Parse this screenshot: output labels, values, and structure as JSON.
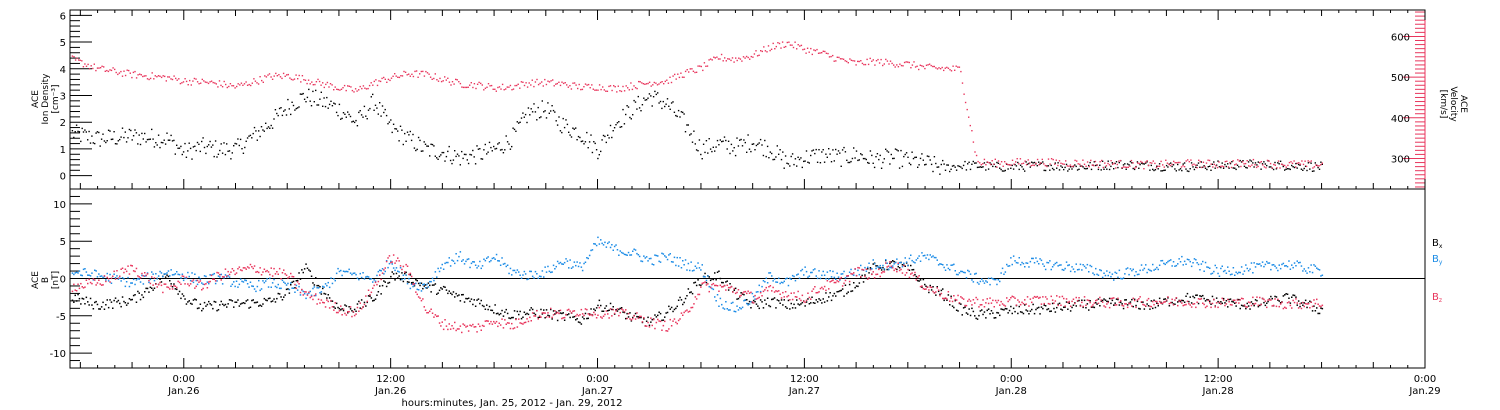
{
  "chart_data": [
    {
      "type": "scatter",
      "panel": "top",
      "title": "",
      "left_axis": {
        "label_lines": [
          "ACE",
          "Ion Density",
          "[cm⁻³]"
        ],
        "ylim": [
          -0.5,
          6.2
        ],
        "ticks": [
          "0",
          "1",
          "2",
          "3",
          "4",
          "5",
          "6"
        ],
        "color": "#000000"
      },
      "right_axis": {
        "label_lines": [
          "ACE",
          "Velocity",
          "[km/s]"
        ],
        "ylim": [
          225,
          665
        ],
        "ticks": [
          "300",
          "400",
          "500",
          "600"
        ],
        "color": "#e8365d"
      },
      "series": [
        {
          "label": "Ion Density",
          "axis": "left",
          "color": "#000000",
          "x": [
            -6.5,
            -5,
            -3,
            -1,
            0,
            1,
            2,
            3,
            4,
            5,
            6,
            7,
            8,
            9,
            10,
            11,
            12,
            13,
            14,
            15,
            16,
            17,
            18,
            19,
            20,
            21,
            22,
            23,
            24,
            25,
            26,
            27,
            28,
            29,
            30,
            31,
            32,
            33,
            34,
            35,
            36,
            37,
            38,
            39,
            40,
            41,
            42,
            43,
            44,
            45,
            46,
            47,
            48,
            50,
            52,
            54,
            56,
            58,
            60,
            62,
            64,
            66
          ],
          "y": [
            1.6,
            1.4,
            1.5,
            1.4,
            0.9,
            1.1,
            1.0,
            1.0,
            1.5,
            2.0,
            2.6,
            3.0,
            2.8,
            2.5,
            2.0,
            2.8,
            1.8,
            1.4,
            1.0,
            0.9,
            0.7,
            0.8,
            1.0,
            1.4,
            2.4,
            2.5,
            1.9,
            1.6,
            1.0,
            2.0,
            2.5,
            3.0,
            2.7,
            2.0,
            1.0,
            1.2,
            1.1,
            1.3,
            1.0,
            0.5,
            0.7,
            0.8,
            0.7,
            0.8,
            0.6,
            0.7,
            0.6,
            0.5,
            0.3,
            0.4,
            0.4,
            0.35,
            0.35,
            0.4,
            0.35,
            0.45,
            0.4,
            0.35,
            0.4,
            0.45,
            0.4,
            0.35
          ]
        },
        {
          "label": "Velocity",
          "axis": "right",
          "color": "#e8365d",
          "x": [
            -6.5,
            -5,
            -3,
            -1,
            0,
            1,
            2,
            3,
            4,
            5,
            6,
            7,
            8,
            9,
            10,
            11,
            12,
            13,
            14,
            15,
            16,
            17,
            18,
            19,
            20,
            21,
            22,
            23,
            24,
            25,
            26,
            27,
            28,
            29,
            30,
            31,
            32,
            33,
            34,
            35,
            36,
            37,
            38,
            39,
            40,
            41,
            42,
            43,
            44,
            45,
            46,
            47,
            48,
            50,
            52,
            54,
            56,
            58,
            60,
            62,
            64,
            66
          ],
          "y": [
            545,
            522,
            508,
            500,
            492,
            490,
            485,
            478,
            490,
            503,
            505,
            496,
            485,
            475,
            468,
            487,
            500,
            510,
            508,
            496,
            485,
            482,
            475,
            478,
            487,
            488,
            484,
            477,
            478,
            473,
            480,
            488,
            492,
            510,
            524,
            550,
            545,
            555,
            575,
            585,
            570,
            560,
            545,
            535,
            540,
            536,
            533,
            525,
            523,
            520,
            292,
            290,
            292,
            292,
            290,
            288,
            286,
            289,
            288,
            290,
            287,
            286
          ]
        }
      ]
    },
    {
      "type": "scatter",
      "panel": "bottom",
      "title": "",
      "left_axis": {
        "label_lines": [
          "ACE",
          "B",
          "[nT]"
        ],
        "ylim": [
          -12,
          12
        ],
        "ticks": [
          "10",
          "5",
          "0",
          "-5",
          "-10"
        ],
        "color": "#000000"
      },
      "zero_line": true,
      "legend": {
        "position": "right",
        "entries": [
          "Bx",
          "By",
          "Bz"
        ]
      },
      "series": [
        {
          "name": "Bx",
          "color": "#000000",
          "x": [
            -6.5,
            -5,
            -3,
            -1,
            0,
            1,
            2,
            3,
            4,
            5,
            6,
            7,
            8,
            9,
            10,
            11,
            12,
            13,
            14,
            15,
            16,
            17,
            18,
            19,
            20,
            21,
            22,
            23,
            24,
            25,
            26,
            27,
            28,
            29,
            30,
            31,
            32,
            33,
            34,
            35,
            36,
            37,
            38,
            39,
            40,
            41,
            42,
            43,
            44,
            45,
            46,
            47,
            48,
            50,
            52,
            54,
            56,
            58,
            60,
            62,
            64,
            66
          ],
          "y": [
            -2.5,
            -3.5,
            -2.8,
            0.5,
            -2.5,
            -3.8,
            -3.5,
            -3.3,
            -3.2,
            -3.0,
            -1.8,
            1.5,
            -1.5,
            -4.0,
            -3.8,
            -2.5,
            0.5,
            0.2,
            -1.0,
            -1.5,
            -2.5,
            -3.0,
            -4.0,
            -4.8,
            -4.5,
            -4.6,
            -5.0,
            -5.5,
            -3.5,
            -4.0,
            -5.2,
            -5.8,
            -4.5,
            -2.5,
            0.0,
            0.5,
            -2.0,
            -3.5,
            -3.0,
            -3.5,
            -3.3,
            -2.5,
            -2.0,
            -0.5,
            1.5,
            2.0,
            1.5,
            -1.0,
            -2.0,
            -4.0,
            -4.8,
            -4.6,
            -4.2,
            -4.0,
            -3.5,
            -3.2,
            -3.5,
            -2.5,
            -3.0,
            -3.5,
            -2.5,
            -4.2
          ]
        },
        {
          "name": "By",
          "color": "#1c8ce6",
          "x": [
            -6.5,
            -5,
            -3,
            -1,
            0,
            1,
            2,
            3,
            4,
            5,
            6,
            7,
            8,
            9,
            10,
            11,
            12,
            13,
            14,
            15,
            16,
            17,
            18,
            19,
            20,
            21,
            22,
            23,
            24,
            25,
            26,
            27,
            28,
            29,
            30,
            31,
            32,
            33,
            34,
            35,
            36,
            37,
            38,
            39,
            40,
            41,
            42,
            43,
            44,
            45,
            46,
            47,
            48,
            50,
            52,
            54,
            56,
            58,
            60,
            62,
            64,
            66
          ],
          "y": [
            1.0,
            0.5,
            -0.5,
            1.0,
            0.5,
            -0.2,
            0.2,
            -0.5,
            -1.0,
            -0.5,
            -1.0,
            -2.0,
            -1.5,
            1.0,
            0.5,
            0.0,
            2.5,
            -0.5,
            -1.0,
            2.0,
            3.0,
            1.5,
            3.0,
            1.0,
            0.5,
            1.0,
            2.5,
            1.5,
            5.0,
            4.0,
            3.5,
            2.5,
            3.0,
            2.0,
            1.5,
            -3.0,
            -4.0,
            -2.5,
            0.5,
            -0.5,
            1.0,
            0.5,
            0.5,
            1.0,
            2.0,
            2.0,
            2.5,
            3.0,
            2.0,
            1.0,
            0.0,
            -0.5,
            2.5,
            2.0,
            1.5,
            0.5,
            1.5,
            2.5,
            1.0,
            1.5,
            2.0,
            1.0
          ]
        },
        {
          "name": "Bz",
          "color": "#e8365d",
          "x": [
            -6.5,
            -5,
            -3,
            -1,
            0,
            1,
            2,
            3,
            4,
            5,
            6,
            7,
            8,
            9,
            10,
            11,
            12,
            13,
            14,
            15,
            16,
            17,
            18,
            19,
            20,
            21,
            22,
            23,
            24,
            25,
            26,
            27,
            28,
            29,
            30,
            31,
            32,
            33,
            34,
            35,
            36,
            37,
            38,
            39,
            40,
            41,
            42,
            43,
            44,
            45,
            46,
            47,
            48,
            50,
            52,
            54,
            56,
            58,
            60,
            62,
            64,
            66
          ],
          "y": [
            -1.0,
            -0.5,
            1.5,
            -1.5,
            0.0,
            -1.0,
            0.5,
            1.0,
            1.5,
            1.0,
            0.5,
            -2.0,
            -3.0,
            -4.0,
            -4.5,
            -1.0,
            3.0,
            1.0,
            -4.0,
            -6.0,
            -6.5,
            -6.5,
            -5.5,
            -6.3,
            -5.0,
            -4.5,
            -4.8,
            -4.2,
            -4.5,
            -4.5,
            -5.0,
            -5.8,
            -6.3,
            -5.0,
            -1.0,
            -1.0,
            -1.5,
            -2.5,
            -1.5,
            -2.0,
            -2.5,
            -1.0,
            -0.5,
            1.0,
            0.5,
            2.0,
            1.0,
            -1.0,
            -2.0,
            -3.0,
            -3.0,
            -3.2,
            -3.0,
            -2.8,
            -3.0,
            -3.2,
            -3.0,
            -3.0,
            -3.2,
            -3.0,
            -3.3,
            -3.2
          ]
        }
      ]
    }
  ],
  "time_axis": {
    "hours_range": [
      -6.6,
      72
    ],
    "ticks": [
      {
        "hours": 0,
        "time": "0:00",
        "date": "Jan.26"
      },
      {
        "hours": 12,
        "time": "12:00",
        "date": "Jan.26"
      },
      {
        "hours": 24,
        "time": "0:00",
        "date": "Jan.27"
      },
      {
        "hours": 36,
        "time": "12:00",
        "date": "Jan.27"
      },
      {
        "hours": 48,
        "time": "0:00",
        "date": "Jan.28"
      },
      {
        "hours": 60,
        "time": "12:00",
        "date": "Jan.28"
      },
      {
        "hours": 72,
        "time": "0:00",
        "date": "Jan.29"
      }
    ],
    "label": "hours:minutes, Jan. 25, 2012 - Jan. 29, 2012"
  },
  "legend_labels": {
    "bx": {
      "base": "B",
      "sub": "x"
    },
    "by": {
      "base": "B",
      "sub": "y"
    },
    "bz": {
      "base": "B",
      "sub": "z"
    }
  },
  "colors": {
    "black": "#000000",
    "pink": "#e8365d",
    "blue": "#1c8ce6"
  }
}
